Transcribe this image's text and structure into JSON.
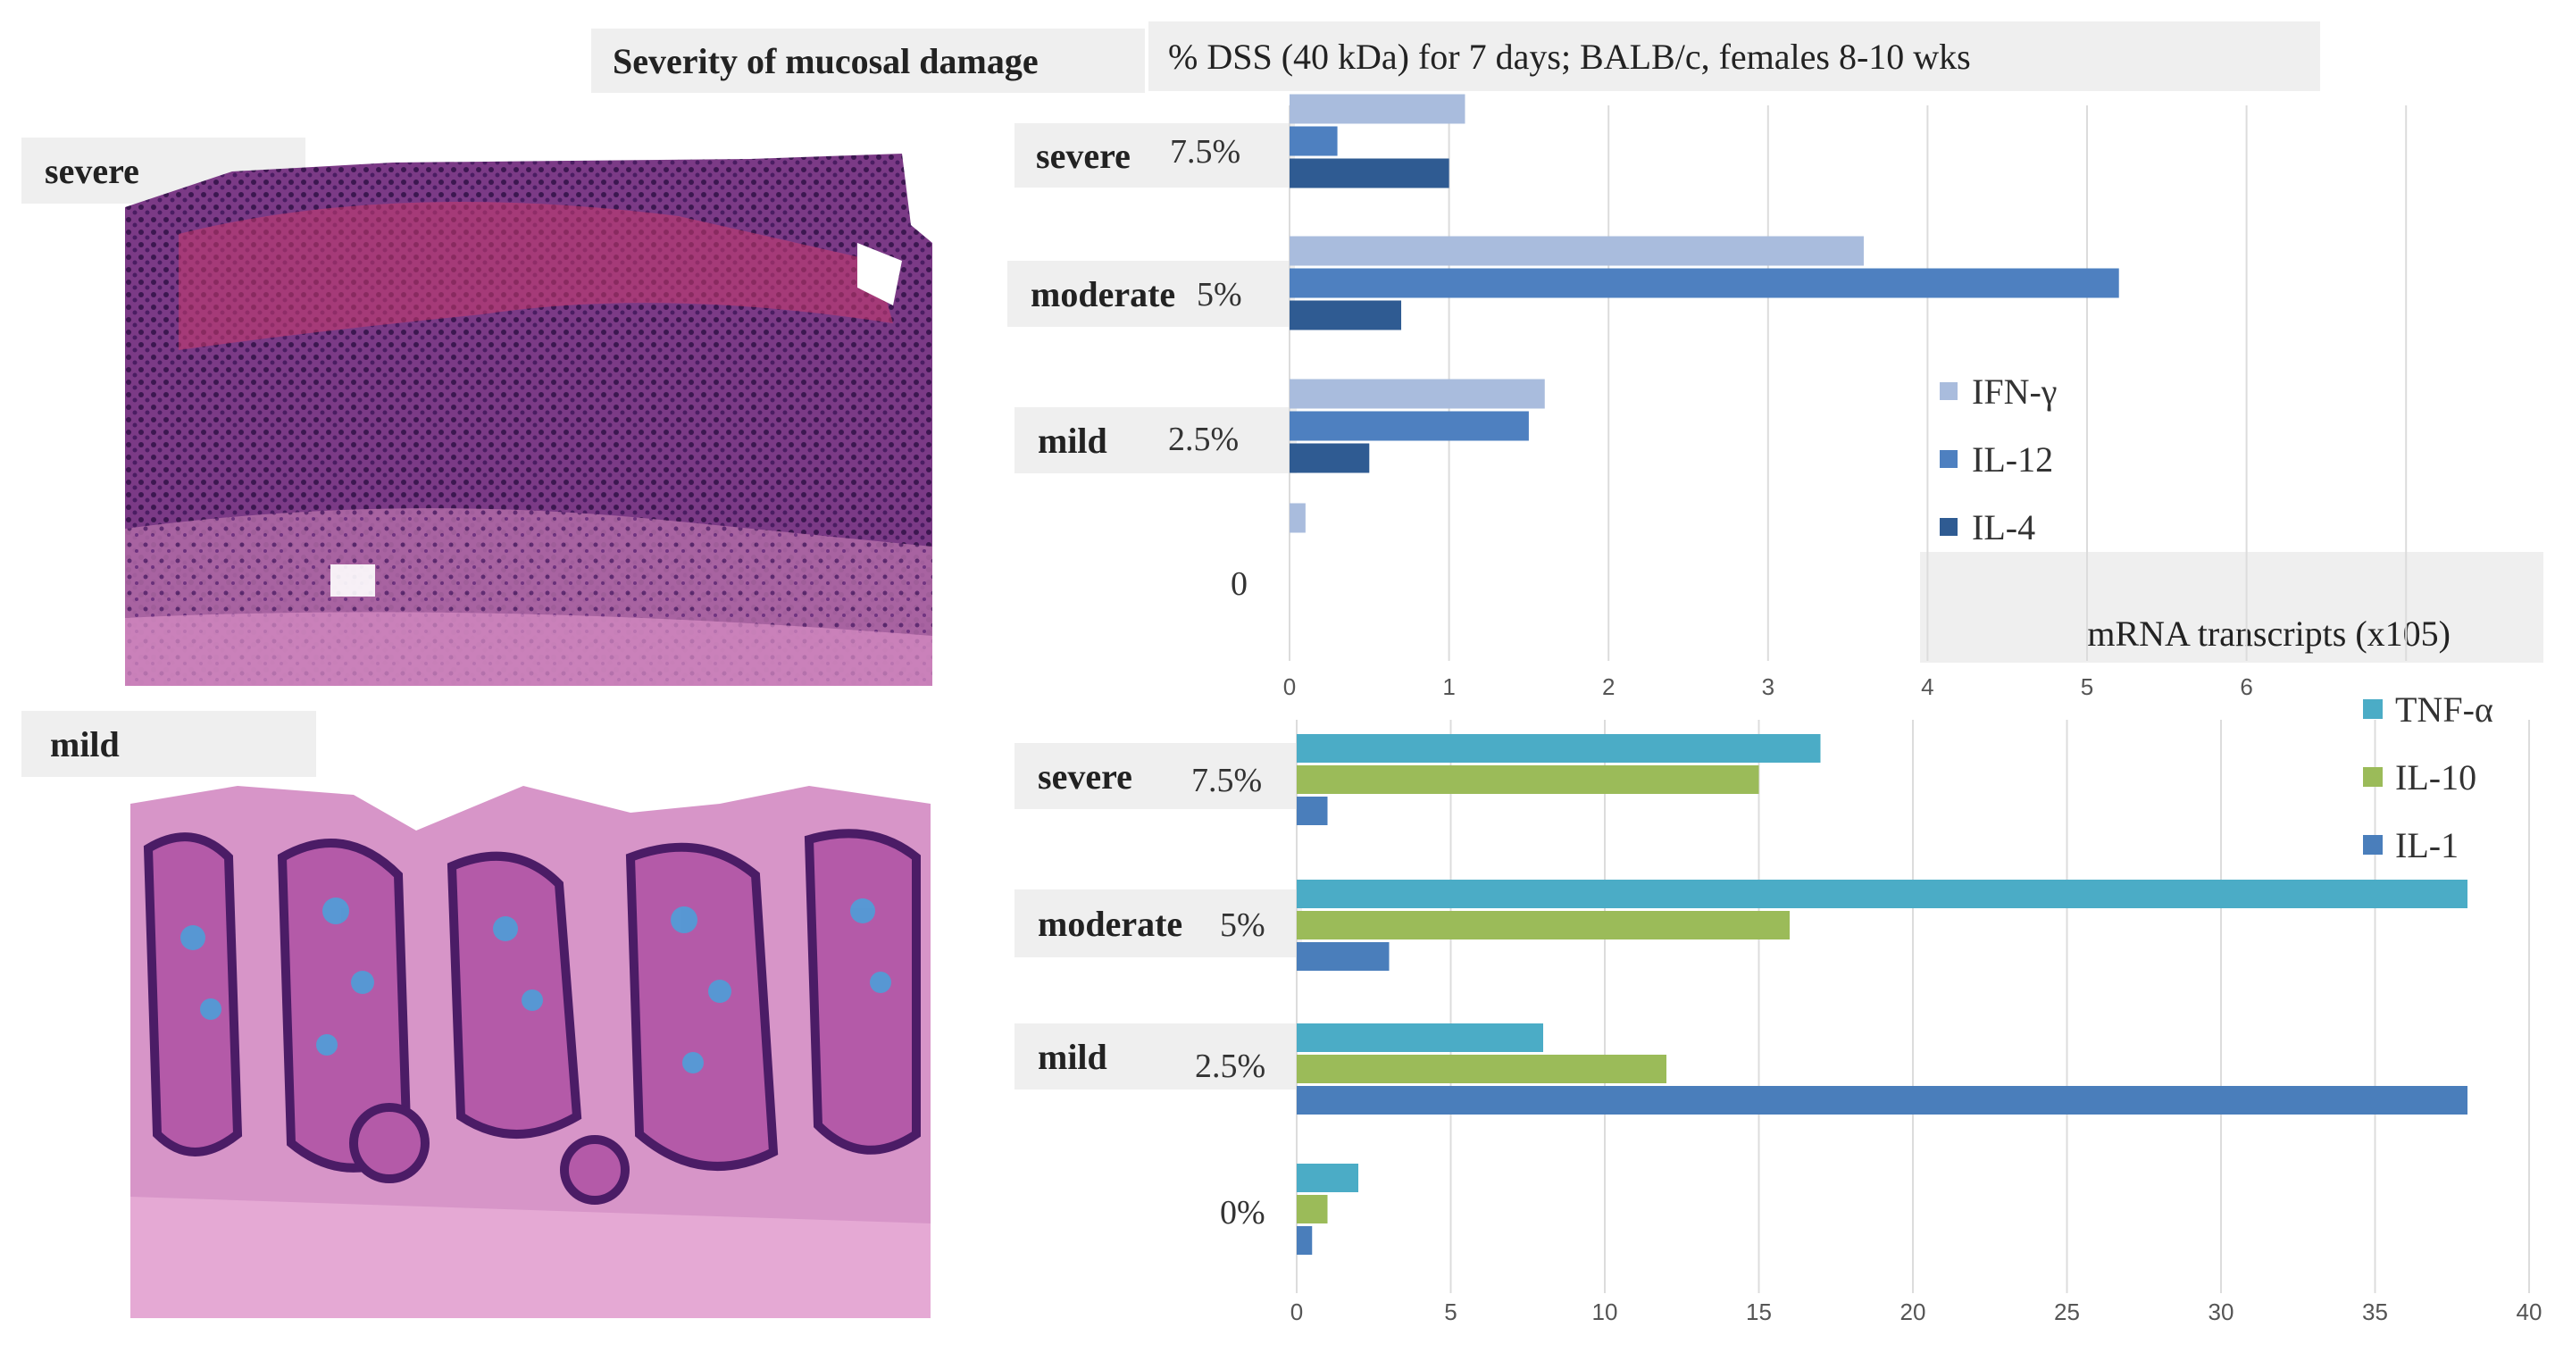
{
  "headers": {
    "severity_title": "Severity of mucosal damage",
    "dss_title": "% DSS (40 kDa) for 7 days; BALB/c, females 8-10 wks",
    "mrna_title": "mRNA transcripts (x105)"
  },
  "histology": [
    {
      "label": "severe"
    },
    {
      "label": "mild"
    }
  ],
  "chart_data": [
    {
      "type": "bar",
      "orientation": "horizontal",
      "categories": [
        "severe",
        "moderate",
        "mild",
        ""
      ],
      "category_pcts": [
        "7.5%",
        "5%",
        "2.5%",
        "0"
      ],
      "series": [
        {
          "name": "IFN-γ",
          "color": "#a9bcdd",
          "values": [
            1.1,
            3.6,
            1.6,
            0.1
          ]
        },
        {
          "name": "IL-12",
          "color": "#4e80c0",
          "values": [
            0.3,
            5.2,
            1.5,
            0
          ]
        },
        {
          "name": "IL-4",
          "color": "#2f5b92",
          "values": [
            1.0,
            0.7,
            0.5,
            0
          ]
        }
      ],
      "xlim": [
        0,
        7
      ],
      "xticks": [
        "0",
        "1",
        "2",
        "3",
        "4",
        "5",
        "6"
      ],
      "grid": true,
      "legend_position": "right"
    },
    {
      "type": "bar",
      "orientation": "horizontal",
      "categories": [
        "severe",
        "moderate",
        "mild",
        ""
      ],
      "category_pcts": [
        "7.5%",
        "5%",
        "2.5%",
        "0%"
      ],
      "series": [
        {
          "name": "TNF-α",
          "color": "#4bacc6",
          "values": [
            17,
            38,
            8,
            2
          ]
        },
        {
          "name": "IL-10",
          "color": "#9bbb59",
          "values": [
            15,
            16,
            12,
            1
          ]
        },
        {
          "name": "IL-1",
          "color": "#4a7ebb",
          "values": [
            1,
            3,
            38,
            0.5
          ]
        }
      ],
      "xlim": [
        0,
        40
      ],
      "xticks": [
        "0",
        "5",
        "10",
        "15",
        "20",
        "25",
        "30",
        "35",
        "40"
      ],
      "grid": true,
      "legend_position": "top-right"
    }
  ]
}
